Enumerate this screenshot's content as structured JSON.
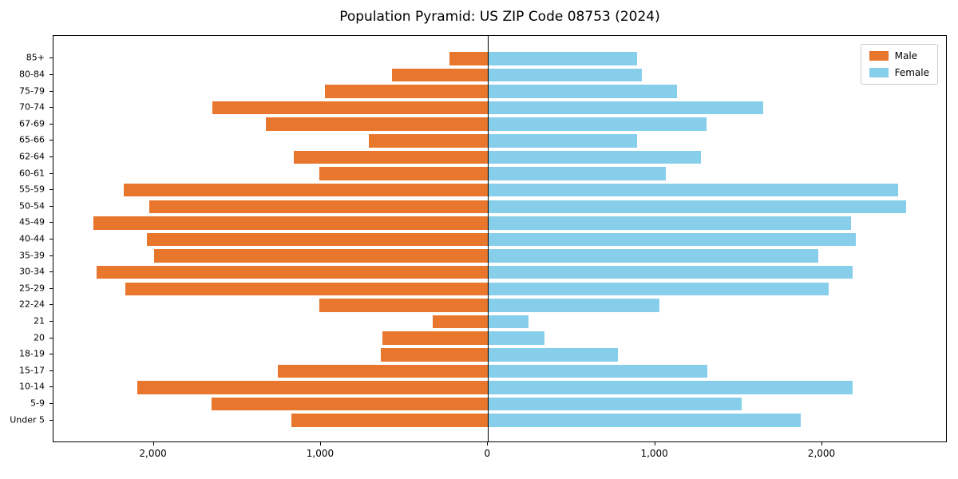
{
  "title": "Population Pyramid: US ZIP Code 08753 (2024)",
  "legend": {
    "male_label": "Male",
    "female_label": "Female"
  },
  "colors": {
    "male": "#E8762C",
    "female": "#87CEEB",
    "axis": "#000000"
  },
  "chart_data": {
    "type": "bar",
    "subtype": "population-pyramid",
    "title": "Population Pyramid: US ZIP Code 08753 (2024)",
    "categories_top_to_bottom": [
      "85+",
      "80-84",
      "75-79",
      "70-74",
      "67-69",
      "65-66",
      "62-64",
      "60-61",
      "55-59",
      "50-54",
      "45-49",
      "40-44",
      "35-39",
      "30-34",
      "25-29",
      "22-24",
      "21",
      "20",
      "18-19",
      "15-17",
      "10-14",
      "5-9",
      "Under 5"
    ],
    "series": [
      {
        "name": "Male",
        "side": "left",
        "values": [
          230,
          575,
          975,
          1650,
          1330,
          715,
          1160,
          1010,
          2180,
          2025,
          2360,
          2040,
          2000,
          2340,
          2170,
          1010,
          330,
          630,
          640,
          1260,
          2100,
          1655,
          1175
        ]
      },
      {
        "name": "Female",
        "side": "right",
        "values": [
          890,
          920,
          1130,
          1645,
          1305,
          890,
          1270,
          1060,
          2450,
          2500,
          2170,
          2200,
          1975,
          2180,
          2035,
          1025,
          240,
          335,
          775,
          1310,
          2180,
          1515,
          1870
        ]
      }
    ],
    "x_tick_labels": [
      "2,000",
      "1,000",
      "0",
      "1,000",
      "2,000"
    ],
    "x_tick_values": [
      -2000,
      -1000,
      0,
      1000,
      2000
    ],
    "xlim": [
      -2600,
      2750
    ],
    "grid": false,
    "legend_position": "upper right"
  }
}
